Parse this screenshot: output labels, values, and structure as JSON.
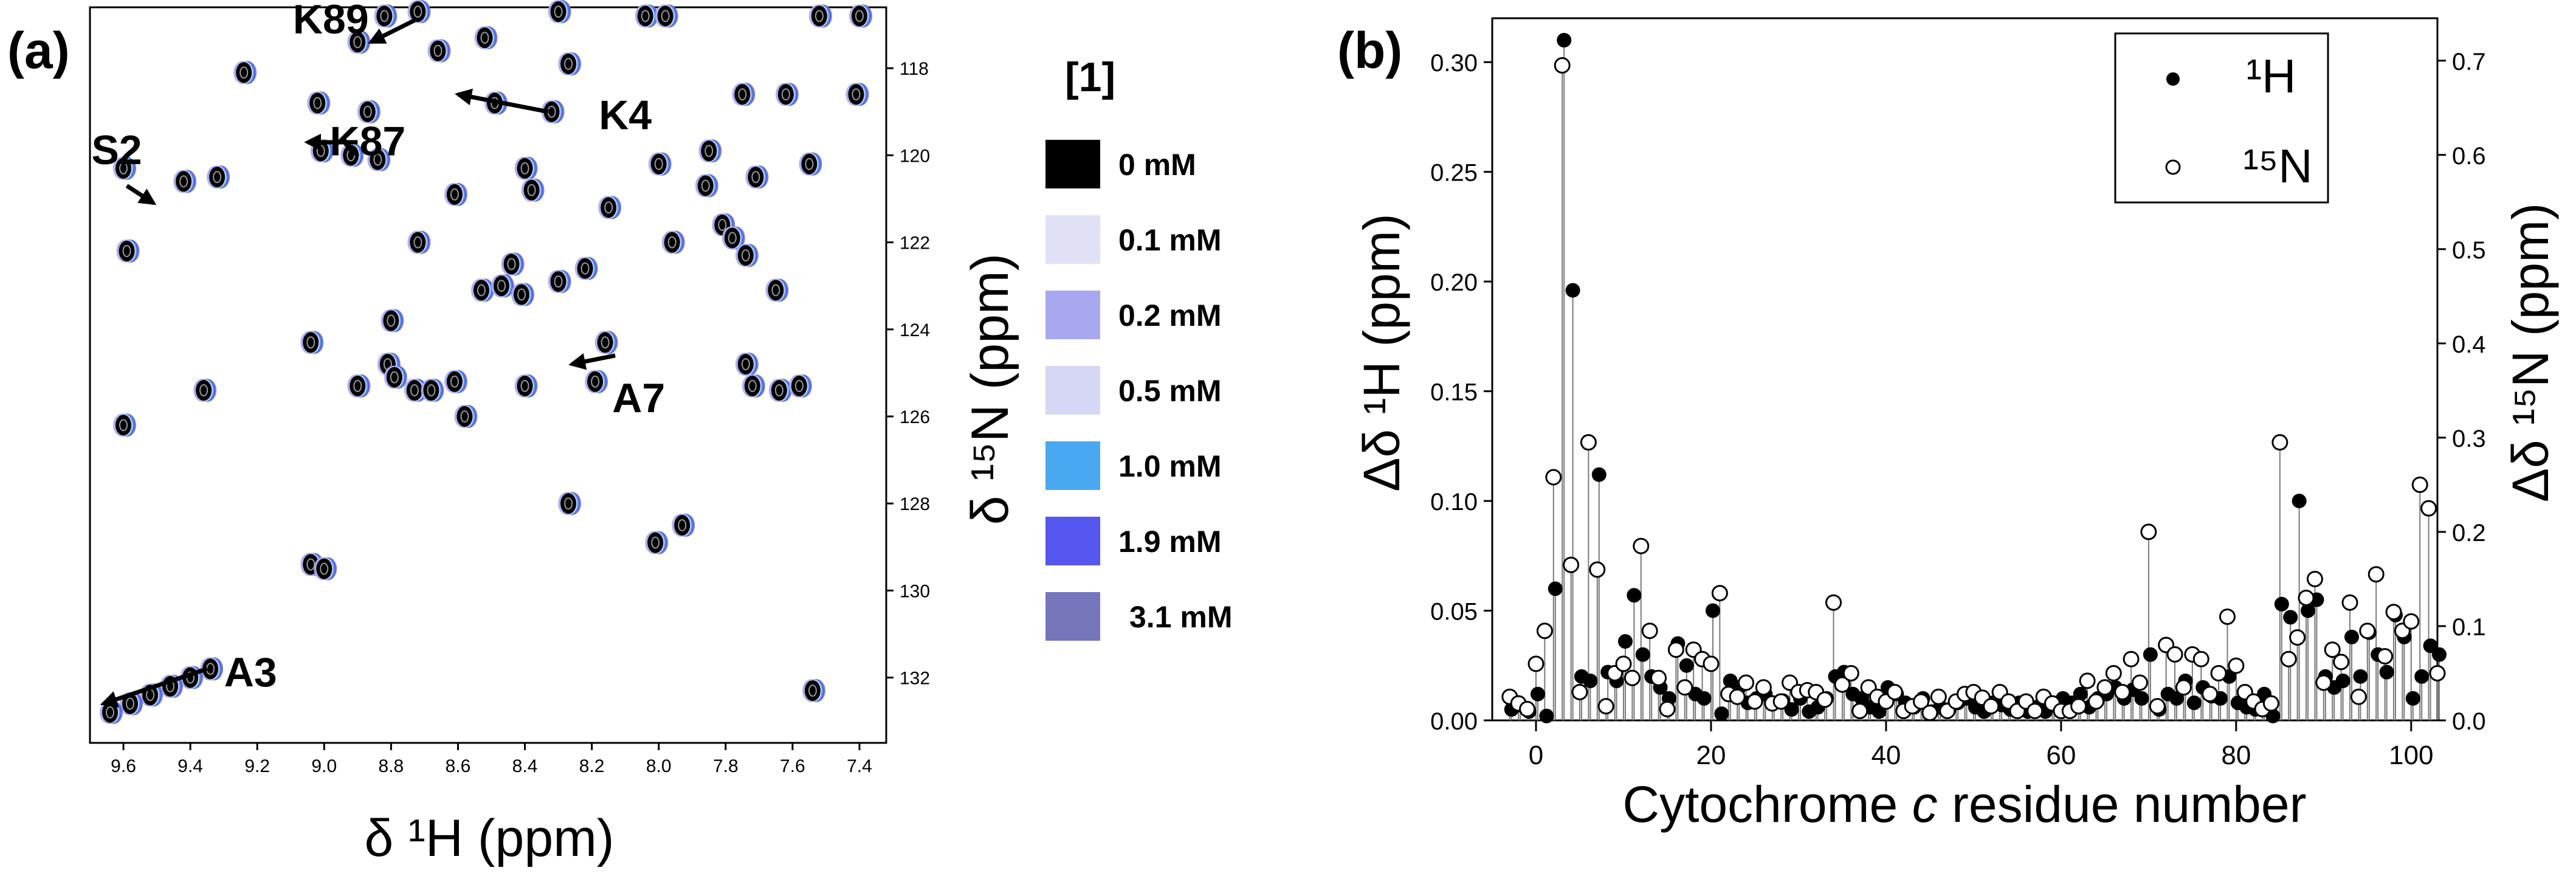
{
  "colors": {
    "0mM": "#000000",
    "0.1mM": "#e1e1f6",
    "0.2mM": "#a8a8f0",
    "0.5mM": "#d6d6f5",
    "1.0mM": "#4aa8f0",
    "1.9mM": "#5656f0",
    "3.1mM": "#7676bd"
  },
  "chart_data": [
    {
      "type": "scatter",
      "panel_label": "(a)",
      "xlabel": "δ ¹H (ppm)",
      "ylabel": "δ ¹⁵N (ppm)",
      "xlim": [
        9.7,
        7.32
      ],
      "ylim": [
        116.6,
        133.5
      ],
      "x_ticks": [
        "9.6",
        "9.4",
        "9.2",
        "9.0",
        "8.8",
        "8.6",
        "8.4",
        "8.2",
        "8.0",
        "7.8",
        "7.6",
        "7.4"
      ],
      "y_ticks": [
        "118",
        "120",
        "122",
        "124",
        "126",
        "128",
        "130",
        "132"
      ],
      "legend_title": "[1]",
      "legend": [
        {
          "label": "0 mM",
          "color_key": "0mM"
        },
        {
          "label": "0.1 mM",
          "color_key": "0.1mM"
        },
        {
          "label": "0.2 mM",
          "color_key": "0.2mM"
        },
        {
          "label": "0.5 mM",
          "color_key": "0.5mM"
        },
        {
          "label": "1.0 mM",
          "color_key": "1.0mM"
        },
        {
          "label": "1.9 mM",
          "color_key": "1.9mM"
        },
        {
          "label": "3.1 mM",
          "color_key": "3.1mM"
        }
      ],
      "annotations": [
        {
          "text": "K89",
          "x": 8.98,
          "y": 117.2,
          "arrow": [
            [
              8.73,
              116.9
            ],
            [
              8.86,
              117.4
            ]
          ]
        },
        {
          "text": "K87",
          "x": 8.87,
          "y": 120.0,
          "arrow": [
            [
              8.9,
              119.7
            ],
            [
              9.05,
              119.7
            ]
          ]
        },
        {
          "text": "K4",
          "x": 8.1,
          "y": 119.4,
          "arrow": [
            [
              8.33,
              119.0
            ],
            [
              8.6,
              118.6
            ]
          ]
        },
        {
          "text": "S2",
          "x": 9.62,
          "y": 120.2,
          "arrow": [
            [
              9.59,
              120.7
            ],
            [
              9.51,
              121.1
            ]
          ]
        },
        {
          "text": "A7",
          "x": 8.06,
          "y": 125.9,
          "arrow": [
            [
              8.13,
              124.6
            ],
            [
              8.26,
              124.8
            ]
          ]
        },
        {
          "text": "A3",
          "x": 9.22,
          "y": 132.2,
          "arrow": [
            [
              9.35,
              131.8
            ],
            [
              9.66,
              132.6
            ]
          ]
        }
      ],
      "peaks": [
        {
          "x": 8.82,
          "y": 116.8
        },
        {
          "x": 8.72,
          "y": 116.7
        },
        {
          "x": 8.3,
          "y": 116.7
        },
        {
          "x": 8.04,
          "y": 116.8
        },
        {
          "x": 7.98,
          "y": 116.8
        },
        {
          "x": 7.52,
          "y": 116.8
        },
        {
          "x": 7.4,
          "y": 116.8
        },
        {
          "x": 8.9,
          "y": 117.4
        },
        {
          "x": 8.66,
          "y": 117.6
        },
        {
          "x": 8.52,
          "y": 117.3
        },
        {
          "x": 9.24,
          "y": 118.1
        },
        {
          "x": 8.27,
          "y": 117.9
        },
        {
          "x": 9.02,
          "y": 118.8
        },
        {
          "x": 8.87,
          "y": 119.0
        },
        {
          "x": 8.49,
          "y": 118.8
        },
        {
          "x": 7.75,
          "y": 118.6
        },
        {
          "x": 7.62,
          "y": 118.6
        },
        {
          "x": 7.41,
          "y": 118.6
        },
        {
          "x": 9.6,
          "y": 120.3
        },
        {
          "x": 9.42,
          "y": 120.6
        },
        {
          "x": 9.32,
          "y": 120.5
        },
        {
          "x": 9.01,
          "y": 119.9
        },
        {
          "x": 8.92,
          "y": 120.0
        },
        {
          "x": 8.84,
          "y": 120.1
        },
        {
          "x": 8.4,
          "y": 120.3
        },
        {
          "x": 8.32,
          "y": 119.0
        },
        {
          "x": 8.0,
          "y": 120.2
        },
        {
          "x": 7.85,
          "y": 119.9
        },
        {
          "x": 7.71,
          "y": 120.5
        },
        {
          "x": 7.55,
          "y": 120.2
        },
        {
          "x": 8.61,
          "y": 120.9
        },
        {
          "x": 8.38,
          "y": 120.8
        },
        {
          "x": 8.15,
          "y": 121.2
        },
        {
          "x": 7.86,
          "y": 120.7
        },
        {
          "x": 7.81,
          "y": 121.6
        },
        {
          "x": 9.59,
          "y": 122.2
        },
        {
          "x": 8.72,
          "y": 122.0
        },
        {
          "x": 8.44,
          "y": 122.5
        },
        {
          "x": 7.96,
          "y": 122.0
        },
        {
          "x": 7.78,
          "y": 121.9
        },
        {
          "x": 7.74,
          "y": 122.3
        },
        {
          "x": 8.53,
          "y": 123.1
        },
        {
          "x": 8.47,
          "y": 123.0
        },
        {
          "x": 8.41,
          "y": 123.2
        },
        {
          "x": 8.3,
          "y": 122.9
        },
        {
          "x": 8.22,
          "y": 122.6
        },
        {
          "x": 7.65,
          "y": 123.1
        },
        {
          "x": 8.8,
          "y": 123.8
        },
        {
          "x": 9.04,
          "y": 124.3
        },
        {
          "x": 8.81,
          "y": 124.8
        },
        {
          "x": 8.79,
          "y": 125.1
        },
        {
          "x": 8.16,
          "y": 124.3
        },
        {
          "x": 7.74,
          "y": 124.8
        },
        {
          "x": 8.9,
          "y": 125.3
        },
        {
          "x": 8.73,
          "y": 125.4
        },
        {
          "x": 8.68,
          "y": 125.4
        },
        {
          "x": 8.61,
          "y": 125.2
        },
        {
          "x": 8.4,
          "y": 125.3
        },
        {
          "x": 8.19,
          "y": 125.2
        },
        {
          "x": 7.72,
          "y": 125.3
        },
        {
          "x": 7.64,
          "y": 125.4
        },
        {
          "x": 7.58,
          "y": 125.3
        },
        {
          "x": 9.36,
          "y": 125.4
        },
        {
          "x": 9.6,
          "y": 126.2
        },
        {
          "x": 8.58,
          "y": 126.0
        },
        {
          "x": 8.27,
          "y": 128.0
        },
        {
          "x": 8.01,
          "y": 128.9
        },
        {
          "x": 7.93,
          "y": 128.5
        },
        {
          "x": 9.04,
          "y": 129.4
        },
        {
          "x": 9.0,
          "y": 129.5
        },
        {
          "x": 9.34,
          "y": 131.8
        },
        {
          "x": 9.4,
          "y": 132.0
        },
        {
          "x": 9.46,
          "y": 132.2
        },
        {
          "x": 9.52,
          "y": 132.4
        },
        {
          "x": 9.58,
          "y": 132.6
        },
        {
          "x": 9.64,
          "y": 132.8
        },
        {
          "x": 7.54,
          "y": 132.3
        }
      ]
    },
    {
      "type": "scatter",
      "panel_label": "(b)",
      "xlabel_pre": "Cytochrome ",
      "xlabel_italic": "c",
      "xlabel_post": " residue number",
      "ylabel_left": "Δδ ¹H (ppm)",
      "ylabel_right": "Δδ ¹⁵N (ppm)",
      "xlim": [
        -5,
        103
      ],
      "ylim_left": [
        0,
        0.32
      ],
      "ylim_right": [
        0,
        0.745
      ],
      "x_ticks": [
        "0",
        "20",
        "40",
        "60",
        "80",
        "100"
      ],
      "y_ticks_left": [
        "0.00",
        "0.05",
        "0.10",
        "0.15",
        "0.20",
        "0.25",
        "0.30"
      ],
      "y_ticks_right": [
        "0.0",
        "0.1",
        "0.2",
        "0.3",
        "0.4",
        "0.5",
        "0.6",
        "0.7"
      ],
      "legend": [
        {
          "label": "¹H",
          "marker": "filled"
        },
        {
          "label": "¹⁵N",
          "marker": "open"
        }
      ],
      "series": [
        {
          "name": "¹H",
          "x": [
            -3,
            -2,
            -1,
            0,
            1,
            2,
            3,
            4,
            5,
            6,
            7,
            8,
            9,
            10,
            11,
            12,
            13,
            14,
            15,
            16,
            17,
            18,
            19,
            20,
            21,
            22,
            23,
            24,
            25,
            26,
            27,
            28,
            29,
            30,
            31,
            32,
            33,
            34,
            35,
            36,
            37,
            38,
            39,
            40,
            41,
            42,
            43,
            44,
            45,
            46,
            47,
            48,
            49,
            50,
            51,
            52,
            53,
            54,
            55,
            56,
            57,
            58,
            59,
            60,
            61,
            62,
            63,
            64,
            65,
            66,
            67,
            68,
            69,
            70,
            71,
            72,
            73,
            74,
            75,
            76,
            77,
            78,
            79,
            80,
            81,
            82,
            83,
            84,
            85,
            86,
            87,
            88,
            89,
            90,
            91,
            92,
            93,
            94,
            95,
            96,
            97,
            98,
            99,
            100,
            101,
            102,
            103
          ],
          "y": [
            0.005,
            0.007,
            0.004,
            0.012,
            0.002,
            0.06,
            0.31,
            0.196,
            0.02,
            0.018,
            0.112,
            0.022,
            0.018,
            0.036,
            0.057,
            0.03,
            0.02,
            0.015,
            0.01,
            0.035,
            0.025,
            0.012,
            0.01,
            0.05,
            0.003,
            0.018,
            0.015,
            0.008,
            0.01,
            0.012,
            0.008,
            0.009,
            0.005,
            0.01,
            0.004,
            0.006,
            0.01,
            0.02,
            0.022,
            0.012,
            0.01,
            0.006,
            0.004,
            0.015,
            0.012,
            0.008,
            0.006,
            0.01,
            0.004,
            0.006,
            0.005,
            0.008,
            0.01,
            0.006,
            0.004,
            0.008,
            0.007,
            0.005,
            0.008,
            0.004,
            0.006,
            0.004,
            0.007,
            0.01,
            0.008,
            0.012,
            0.006,
            0.01,
            0.012,
            0.015,
            0.01,
            0.014,
            0.01,
            0.03,
            0.005,
            0.012,
            0.01,
            0.018,
            0.008,
            0.015,
            0.011,
            0.01,
            0.02,
            0.008,
            0.006,
            0.005,
            0.012,
            0.002,
            0.053,
            0.047,
            0.1,
            0.05,
            0.055,
            0.02,
            0.015,
            0.018,
            0.038,
            0.02,
            0.04,
            0.03,
            0.022,
            0.048,
            0.038,
            0.01,
            0.02,
            0.034,
            0.03
          ]
        },
        {
          "name": "¹⁵N",
          "x": [
            -3,
            -2,
            -1,
            0,
            1,
            2,
            3,
            4,
            5,
            6,
            7,
            8,
            9,
            10,
            11,
            12,
            13,
            14,
            15,
            16,
            17,
            18,
            19,
            20,
            21,
            22,
            23,
            24,
            25,
            26,
            27,
            28,
            29,
            30,
            31,
            32,
            33,
            34,
            35,
            36,
            37,
            38,
            39,
            40,
            41,
            42,
            43,
            44,
            45,
            46,
            47,
            48,
            49,
            50,
            51,
            52,
            53,
            54,
            55,
            56,
            57,
            58,
            59,
            60,
            61,
            62,
            63,
            64,
            65,
            66,
            67,
            68,
            69,
            70,
            71,
            72,
            73,
            74,
            75,
            76,
            77,
            78,
            79,
            80,
            81,
            82,
            83,
            84,
            85,
            86,
            87,
            88,
            89,
            90,
            91,
            92,
            93,
            94,
            95,
            96,
            97,
            98,
            99,
            100,
            101,
            102,
            103
          ],
          "y": [
            0.025,
            0.018,
            0.012,
            0.06,
            0.095,
            0.258,
            0.695,
            0.165,
            0.03,
            0.295,
            0.16,
            0.015,
            0.05,
            0.06,
            0.045,
            0.185,
            0.095,
            0.045,
            0.012,
            0.075,
            0.035,
            0.075,
            0.065,
            0.06,
            0.135,
            0.028,
            0.025,
            0.04,
            0.02,
            0.035,
            0.018,
            0.02,
            0.04,
            0.03,
            0.032,
            0.03,
            0.022,
            0.125,
            0.038,
            0.05,
            0.01,
            0.035,
            0.025,
            0.02,
            0.03,
            0.01,
            0.015,
            0.02,
            0.008,
            0.025,
            0.01,
            0.02,
            0.028,
            0.03,
            0.024,
            0.015,
            0.03,
            0.02,
            0.01,
            0.02,
            0.01,
            0.025,
            0.018,
            0.01,
            0.01,
            0.015,
            0.042,
            0.02,
            0.035,
            0.05,
            0.03,
            0.065,
            0.04,
            0.2,
            0.015,
            0.08,
            0.07,
            0.035,
            0.07,
            0.065,
            0.028,
            0.05,
            0.11,
            0.058,
            0.03,
            0.02,
            0.012,
            0.018,
            0.295,
            0.065,
            0.088,
            0.13,
            0.15,
            0.04,
            0.075,
            0.062,
            0.125,
            0.025,
            0.095,
            0.155,
            0.068,
            0.115,
            0.095,
            0.105,
            0.25,
            0.225,
            0.05
          ]
        }
      ]
    }
  ]
}
